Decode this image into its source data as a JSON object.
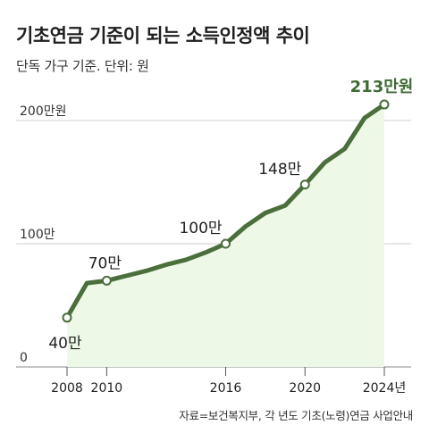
{
  "title": "기초연금 기준이 되는 소득인정액 추이",
  "subtitle": "단독 가구 기준. 단위: 원",
  "source": "자료=보건복지부, 각 년도 기초(노령)연금 사업안내",
  "colors": {
    "line": "#4a6e3c",
    "area": "#eef8e6",
    "grid": "#cfcfcf"
  },
  "chart_data": {
    "type": "area",
    "title": "기초연금 기준이 되는 소득인정액 추이",
    "ylabel_unit": "원",
    "y_ticks": [
      {
        "value": 0,
        "label": "0"
      },
      {
        "value": 100,
        "label": "100만"
      },
      {
        "value": 200,
        "label": "200만원"
      }
    ],
    "x_ticks": [
      {
        "value": 2008,
        "label": "2008"
      },
      {
        "value": 2010,
        "label": "2010"
      },
      {
        "value": 2016,
        "label": "2016"
      },
      {
        "value": 2020,
        "label": "2020"
      },
      {
        "value": 2024,
        "label": "2024년"
      }
    ],
    "xlim": [
      2008,
      2024
    ],
    "ylim": [
      0,
      213
    ],
    "grid": true,
    "series": [
      {
        "x": [
          2008,
          2009,
          2010,
          2011,
          2012,
          2013,
          2014,
          2015,
          2016,
          2017,
          2018,
          2019,
          2020,
          2021,
          2022,
          2023,
          2024
        ],
        "values": [
          40,
          68,
          70,
          74,
          78,
          83,
          87,
          93,
          100,
          114,
          125,
          131,
          148,
          166,
          177,
          202,
          213
        ]
      }
    ],
    "data_labels": [
      {
        "x": 2008,
        "y": 40,
        "label": "40만"
      },
      {
        "x": 2010,
        "y": 70,
        "label": "70만"
      },
      {
        "x": 2016,
        "y": 100,
        "label": "100만"
      },
      {
        "x": 2020,
        "y": 148,
        "label": "148만"
      },
      {
        "x": 2024,
        "y": 213,
        "label": "213만원"
      }
    ]
  }
}
